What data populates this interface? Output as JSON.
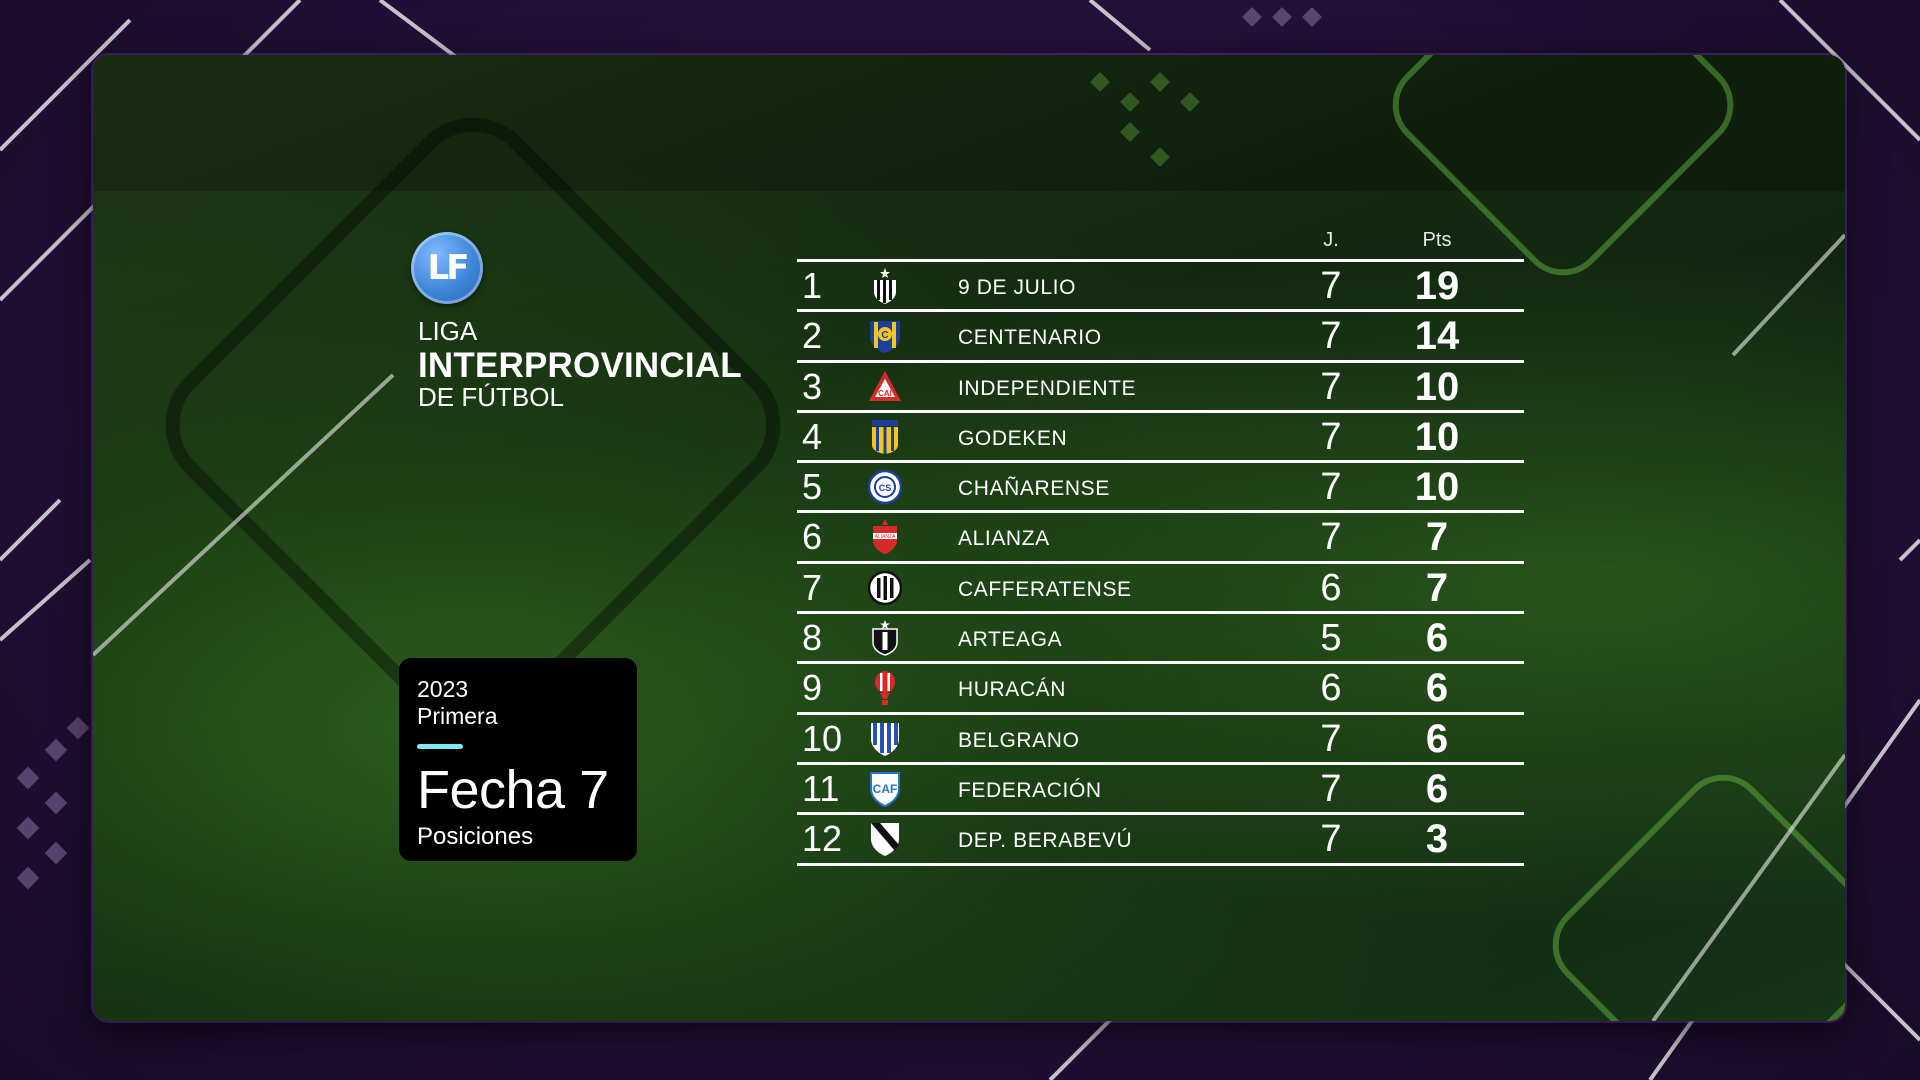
{
  "league": {
    "logo_text": "LF",
    "line1": "LIGA",
    "line2": "INTERPROVINCIAL",
    "line3": "DE FÚTBOL"
  },
  "card": {
    "year": "2023",
    "division": "Primera",
    "fecha": "Fecha 7",
    "subtitle": "Posiciones"
  },
  "table": {
    "col_played": "J.",
    "col_points": "Pts",
    "rows": [
      {
        "pos": "1",
        "team": "9 DE JULIO",
        "played": "7",
        "pts": "19",
        "crest": "stripes-star-crest-icon"
      },
      {
        "pos": "2",
        "team": "CENTENARIO",
        "played": "7",
        "pts": "14",
        "crest": "blue-yellow-shield-crest-icon"
      },
      {
        "pos": "3",
        "team": "INDEPENDIENTE",
        "played": "7",
        "pts": "10",
        "crest": "red-triangle-crest-icon"
      },
      {
        "pos": "4",
        "team": "GODEKEN",
        "played": "7",
        "pts": "10",
        "crest": "blue-gold-stripes-crest-icon"
      },
      {
        "pos": "5",
        "team": "CHAÑARENSE",
        "played": "7",
        "pts": "10",
        "crest": "blue-round-crest-icon"
      },
      {
        "pos": "6",
        "team": "ALIANZA",
        "played": "7",
        "pts": "7",
        "crest": "red-shield-crest-icon"
      },
      {
        "pos": "7",
        "team": "CAFFERATENSE",
        "played": "6",
        "pts": "7",
        "crest": "black-white-round-crest-icon"
      },
      {
        "pos": "8",
        "team": "ARTEAGA",
        "played": "5",
        "pts": "6",
        "crest": "black-shield-star-crest-icon"
      },
      {
        "pos": "9",
        "team": "HURACÁN",
        "played": "6",
        "pts": "6",
        "crest": "red-balloon-crest-icon"
      },
      {
        "pos": "10",
        "team": "BELGRANO",
        "played": "7",
        "pts": "6",
        "crest": "blue-stripes-shield-crest-icon"
      },
      {
        "pos": "11",
        "team": "FEDERACIÓN",
        "played": "7",
        "pts": "6",
        "crest": "blue-caf-crest-icon"
      },
      {
        "pos": "12",
        "team": "DEP. BERABEVÚ",
        "played": "7",
        "pts": "3",
        "crest": "white-sash-shield-crest-icon"
      }
    ]
  },
  "colors": {
    "accent": "#7ee6f5",
    "frame_purple": "#24113a",
    "panel_green": "#132a10",
    "logo_blue": "#3f86d8"
  }
}
